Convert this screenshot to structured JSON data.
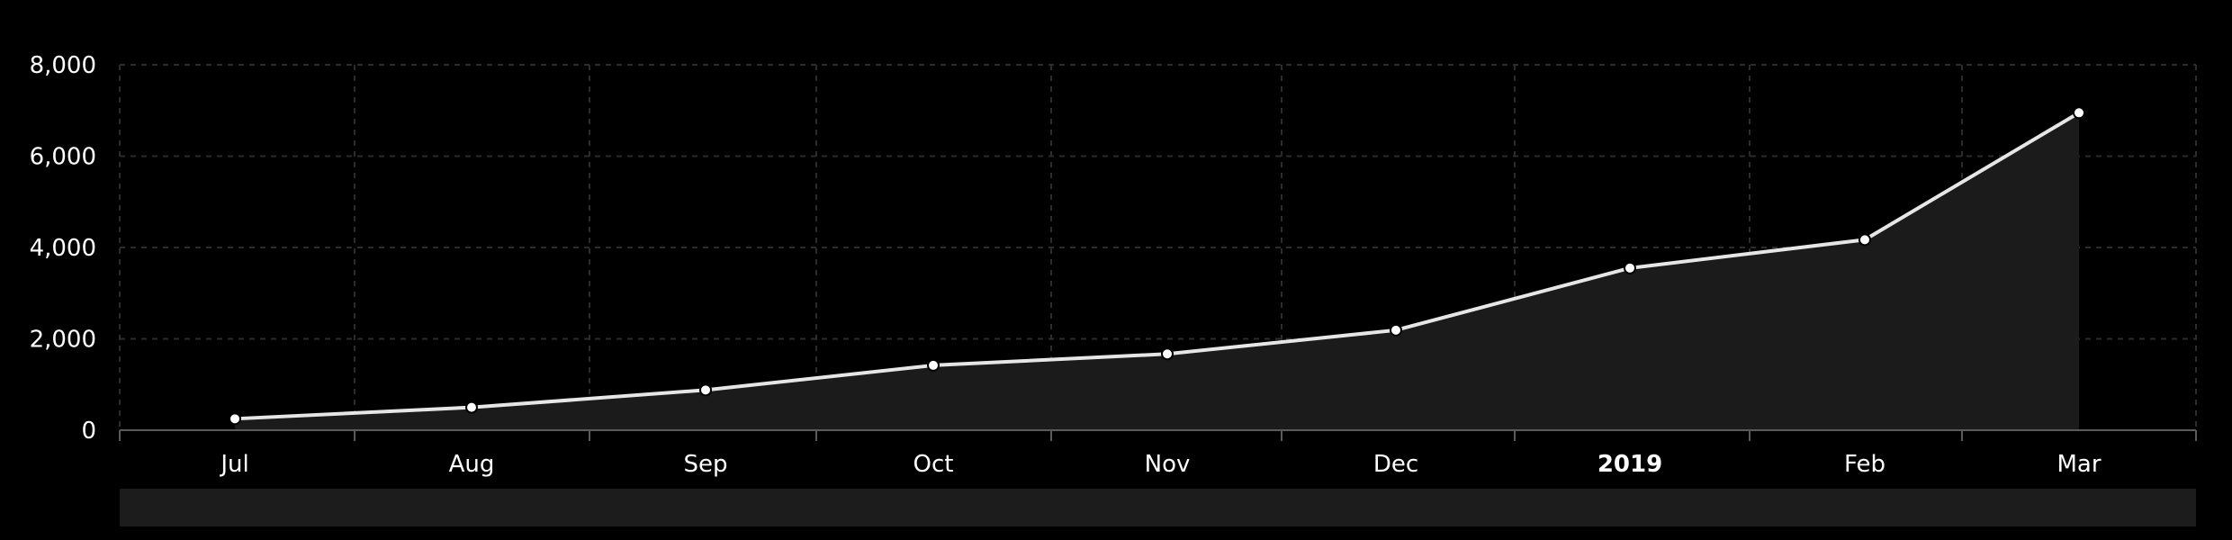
{
  "colors": {
    "background": "#000000",
    "line": "#e6e6e6",
    "area": "#1b1b1b",
    "grid": "#2c2c2c",
    "axis": "#5a5a5a",
    "text": "#ffffff",
    "scrollbar": "#1c1c1c"
  },
  "chart_data": {
    "type": "area",
    "title": "",
    "xlabel": "",
    "ylabel": "",
    "x": [
      "Jul",
      "Aug",
      "Sep",
      "Oct",
      "Nov",
      "Dec",
      "2019",
      "Feb",
      "Mar"
    ],
    "x_label_bold": [
      false,
      false,
      false,
      false,
      false,
      false,
      true,
      false,
      false
    ],
    "series": [
      {
        "values": [
          250,
          500,
          880,
          1420,
          1670,
          2190,
          3550,
          4170,
          6950
        ]
      }
    ],
    "ylim": [
      0,
      8000
    ],
    "yticks": [
      "0",
      "2,000",
      "4,000",
      "6,000",
      "8,000"
    ],
    "ytick_values": [
      0,
      2000,
      4000,
      6000,
      8000
    ],
    "grid": true,
    "legend": "none",
    "scrollbar": true
  }
}
